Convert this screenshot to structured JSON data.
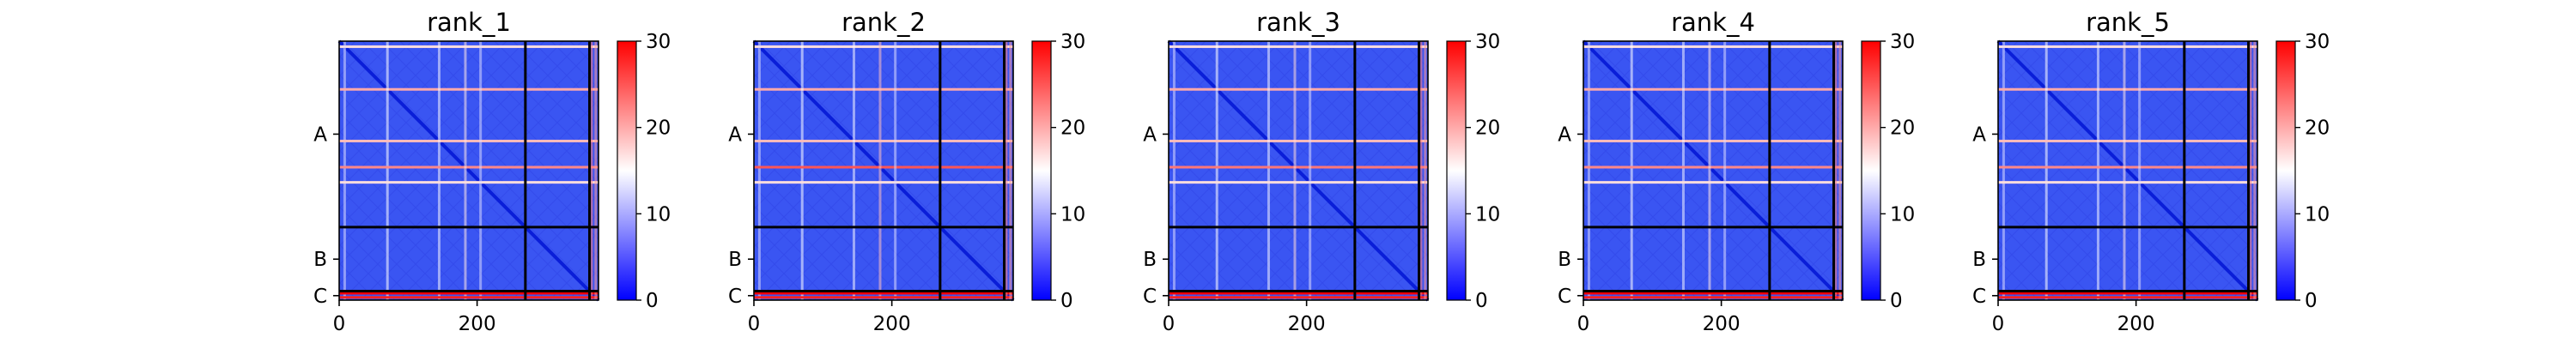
{
  "chart_data": [
    {
      "type": "heatmap",
      "title": "rank_1",
      "xlabel": "",
      "ylabel": "",
      "xlim": [
        0,
        376
      ],
      "ylim": [
        376,
        0
      ],
      "x_ticks": [
        0,
        200
      ],
      "y_tick_labels": [
        "A",
        "B",
        "C"
      ],
      "chain_labels": [
        "A",
        "B",
        "C"
      ],
      "chain_boundaries": [
        270,
        363
      ],
      "colorbar": {
        "ticks": [
          0,
          10,
          20,
          30
        ],
        "range": [
          0,
          30
        ],
        "colormap": "bwr"
      },
      "bands": [
        {
          "row": 8,
          "value": 17
        },
        {
          "row": 70,
          "value": 20
        },
        {
          "row": 145,
          "value": 19
        },
        {
          "row": 183,
          "value": 22
        },
        {
          "row": 205,
          "value": 17
        },
        {
          "row": 366,
          "value": 30
        },
        {
          "row": 372,
          "value": 28
        }
      ]
    },
    {
      "type": "heatmap",
      "title": "rank_2",
      "xlabel": "",
      "ylabel": "",
      "xlim": [
        0,
        376
      ],
      "ylim": [
        376,
        0
      ],
      "x_ticks": [
        0,
        200
      ],
      "y_tick_labels": [
        "A",
        "B",
        "C"
      ],
      "chain_labels": [
        "A",
        "B",
        "C"
      ],
      "chain_boundaries": [
        270,
        363
      ],
      "colorbar": {
        "ticks": [
          0,
          10,
          20,
          30
        ],
        "range": [
          0,
          30
        ],
        "colormap": "bwr"
      },
      "bands": [
        {
          "row": 8,
          "value": 17
        },
        {
          "row": 70,
          "value": 20
        },
        {
          "row": 145,
          "value": 19
        },
        {
          "row": 183,
          "value": 25
        },
        {
          "row": 205,
          "value": 17
        },
        {
          "row": 366,
          "value": 30
        },
        {
          "row": 372,
          "value": 28
        }
      ]
    },
    {
      "type": "heatmap",
      "title": "rank_3",
      "xlabel": "",
      "ylabel": "",
      "xlim": [
        0,
        376
      ],
      "ylim": [
        376,
        0
      ],
      "x_ticks": [
        0,
        200
      ],
      "y_tick_labels": [
        "A",
        "B",
        "C"
      ],
      "chain_labels": [
        "A",
        "B",
        "C"
      ],
      "chain_boundaries": [
        270,
        363
      ],
      "colorbar": {
        "ticks": [
          0,
          10,
          20,
          30
        ],
        "range": [
          0,
          30
        ],
        "colormap": "bwr"
      },
      "bands": [
        {
          "row": 8,
          "value": 17
        },
        {
          "row": 70,
          "value": 20
        },
        {
          "row": 145,
          "value": 19
        },
        {
          "row": 183,
          "value": 23
        },
        {
          "row": 205,
          "value": 17
        },
        {
          "row": 366,
          "value": 30
        },
        {
          "row": 372,
          "value": 28
        }
      ]
    },
    {
      "type": "heatmap",
      "title": "rank_4",
      "xlabel": "",
      "ylabel": "",
      "xlim": [
        0,
        376
      ],
      "ylim": [
        376,
        0
      ],
      "x_ticks": [
        0,
        200
      ],
      "y_tick_labels": [
        "A",
        "B",
        "C"
      ],
      "chain_labels": [
        "A",
        "B",
        "C"
      ],
      "chain_boundaries": [
        270,
        363
      ],
      "colorbar": {
        "ticks": [
          0,
          10,
          20,
          30
        ],
        "range": [
          0,
          30
        ],
        "colormap": "bwr"
      },
      "bands": [
        {
          "row": 8,
          "value": 17
        },
        {
          "row": 70,
          "value": 20
        },
        {
          "row": 145,
          "value": 19
        },
        {
          "row": 183,
          "value": 22
        },
        {
          "row": 205,
          "value": 17
        },
        {
          "row": 366,
          "value": 30
        },
        {
          "row": 372,
          "value": 28
        }
      ]
    },
    {
      "type": "heatmap",
      "title": "rank_5",
      "xlabel": "",
      "ylabel": "",
      "xlim": [
        0,
        376
      ],
      "ylim": [
        376,
        0
      ],
      "x_ticks": [
        0,
        200
      ],
      "y_tick_labels": [
        "A",
        "B",
        "C"
      ],
      "chain_labels": [
        "A",
        "B",
        "C"
      ],
      "chain_boundaries": [
        270,
        363
      ],
      "colorbar": {
        "ticks": [
          0,
          10,
          20,
          30
        ],
        "range": [
          0,
          30
        ],
        "colormap": "bwr"
      },
      "bands": [
        {
          "row": 8,
          "value": 17
        },
        {
          "row": 70,
          "value": 20
        },
        {
          "row": 145,
          "value": 19
        },
        {
          "row": 183,
          "value": 22
        },
        {
          "row": 205,
          "value": 17
        },
        {
          "row": 366,
          "value": 30
        },
        {
          "row": 372,
          "value": 28
        }
      ]
    }
  ],
  "colors": {
    "low": "#0000ff",
    "mid": "#ffffff",
    "high": "#ff0000",
    "base": "#3a55f2",
    "boundary": "#000000"
  }
}
